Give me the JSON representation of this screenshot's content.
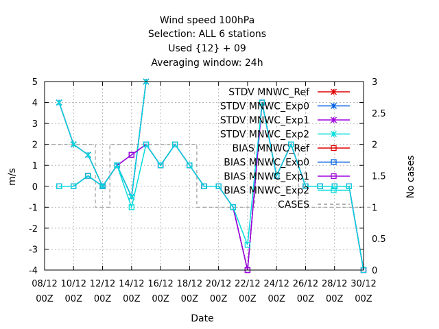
{
  "chart_data": {
    "type": "line",
    "title_lines": [
      "Wind speed 100hPa",
      "Selection: ALL      6 stations",
      "Used {12} + 09",
      "Averaging window: 24h"
    ],
    "xlabel": "Date",
    "ylabel": "m/s",
    "y2label": "No cases",
    "x_ticks": [
      {
        "day": 8,
        "label": "08/12",
        "sub": "00Z"
      },
      {
        "day": 10,
        "label": "10/12",
        "sub": "00Z"
      },
      {
        "day": 12,
        "label": "12/12",
        "sub": "00Z"
      },
      {
        "day": 14,
        "label": "14/12",
        "sub": "00Z"
      },
      {
        "day": 16,
        "label": "16/12",
        "sub": "00Z"
      },
      {
        "day": 18,
        "label": "18/12",
        "sub": "00Z"
      },
      {
        "day": 20,
        "label": "20/12",
        "sub": "00Z"
      },
      {
        "day": 22,
        "label": "22/12",
        "sub": "00Z"
      },
      {
        "day": 24,
        "label": "24/12",
        "sub": "00Z"
      },
      {
        "day": 26,
        "label": "26/12",
        "sub": "00Z"
      },
      {
        "day": 28,
        "label": "28/12",
        "sub": "00Z"
      },
      {
        "day": 30,
        "label": "30/12",
        "sub": "00Z"
      }
    ],
    "xlim": [
      8,
      30
    ],
    "ylim": [
      -4,
      5
    ],
    "y_ticks": [
      -4,
      -3,
      -2,
      -1,
      0,
      1,
      2,
      3,
      4,
      5
    ],
    "y2lim": [
      0,
      3
    ],
    "y2_ticks": [
      {
        "v": 0,
        "label": "0"
      },
      {
        "v": 0.5,
        "label": "0.5"
      },
      {
        "v": 1,
        "label": "1"
      },
      {
        "v": 1.5,
        "label": "1.5"
      },
      {
        "v": 2,
        "label": "2"
      },
      {
        "v": 2.5,
        "label": "2.5"
      },
      {
        "v": 3,
        "label": "3"
      }
    ],
    "grid": true,
    "legend_position": "top-right",
    "x": [
      9,
      10,
      11,
      12,
      13,
      14,
      15,
      16,
      17,
      18,
      19,
      20,
      21,
      22,
      23,
      24,
      25,
      26,
      27,
      28,
      29,
      30
    ],
    "series": [
      {
        "name": "STDV MNWC_Ref",
        "color": "#e00000",
        "marker": "x",
        "values": [
          4,
          2,
          1.5,
          0,
          1,
          -0.5,
          5,
          null,
          null,
          null,
          null,
          null,
          null,
          null,
          null,
          null,
          null,
          null,
          null,
          null,
          null,
          null
        ]
      },
      {
        "name": "STDV MNWC_Exp0",
        "color": "#0060e0",
        "marker": "x",
        "values": [
          4,
          2,
          1.5,
          0,
          1,
          -0.5,
          5,
          null,
          null,
          null,
          null,
          null,
          null,
          null,
          null,
          null,
          null,
          null,
          null,
          null,
          null,
          null
        ]
      },
      {
        "name": "STDV MNWC_Exp1",
        "color": "#a000e0",
        "marker": "x",
        "values": [
          4,
          2,
          1.5,
          0,
          1,
          -0.5,
          5,
          null,
          null,
          null,
          null,
          null,
          null,
          null,
          null,
          null,
          null,
          null,
          null,
          null,
          null,
          null
        ]
      },
      {
        "name": "STDV MNWC_Exp2",
        "color": "#00dcdc",
        "marker": "x",
        "values": [
          4,
          2,
          1.5,
          0,
          1,
          -0.5,
          5,
          null,
          null,
          null,
          null,
          null,
          null,
          null,
          null,
          null,
          null,
          null,
          null,
          null,
          null,
          null
        ]
      },
      {
        "name": "BIAS MNWC_Ref",
        "color": "#e00000",
        "marker": "square",
        "values": [
          0,
          0,
          0.5,
          0,
          1,
          1.5,
          2,
          1,
          2,
          1,
          0,
          0,
          -1,
          -4,
          4,
          0.5,
          2,
          0,
          0,
          0,
          0,
          -4
        ]
      },
      {
        "name": "BIAS MNWC_Exp0",
        "color": "#0060e0",
        "marker": "square",
        "values": [
          0,
          0,
          0.5,
          0,
          1,
          1.5,
          2,
          1,
          2,
          1,
          0,
          0,
          -1,
          -4,
          4,
          0.5,
          2,
          0,
          0,
          0,
          0,
          -4
        ]
      },
      {
        "name": "BIAS MNWC_Exp1",
        "color": "#a000e0",
        "marker": "square",
        "values": [
          0,
          0,
          0.5,
          0,
          1,
          1.5,
          2,
          1,
          2,
          1,
          0,
          0,
          -1,
          -4,
          4,
          0.5,
          2,
          0,
          0,
          0,
          0,
          -4
        ]
      },
      {
        "name": "BIAS MNWC_Exp2",
        "color": "#00dcdc",
        "marker": "square",
        "values": [
          0,
          0,
          0.5,
          0,
          1,
          -1,
          2,
          1,
          2,
          1,
          0,
          0,
          -1,
          -2.8,
          4,
          0.5,
          2,
          0,
          0,
          0,
          0,
          -4
        ]
      }
    ],
    "cases": {
      "name": "CASES",
      "color": "#999999",
      "axis": "y2",
      "values": [
        2,
        2,
        2,
        1,
        2,
        2,
        2,
        2,
        2,
        2,
        1,
        1,
        1,
        1,
        2,
        2,
        2,
        1,
        1,
        1,
        1,
        1
      ]
    }
  }
}
